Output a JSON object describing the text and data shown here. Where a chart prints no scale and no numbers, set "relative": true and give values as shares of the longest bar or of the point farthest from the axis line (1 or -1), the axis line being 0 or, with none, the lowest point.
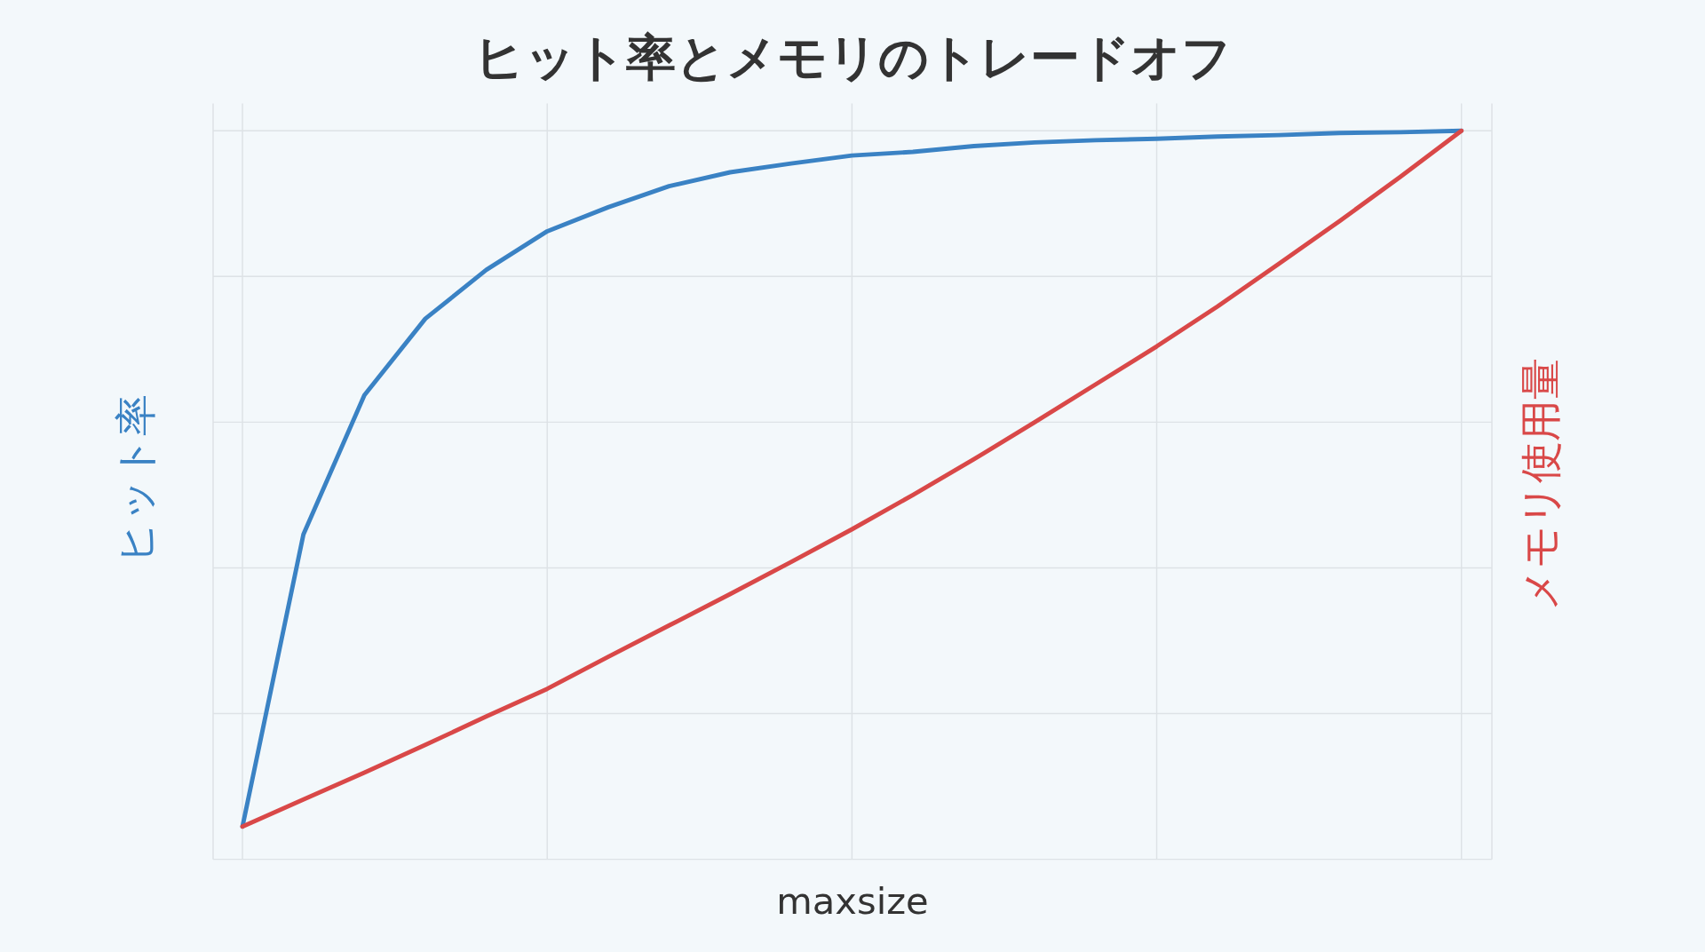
{
  "chart_data": {
    "type": "line",
    "title": "ヒット率とメモリのトレードオフ",
    "xlabel": "maxsize",
    "ylabel": "ヒット率",
    "y2label": "メモリ使用量",
    "relative": true,
    "grid": true,
    "categories": [
      null,
      null,
      null,
      null,
      null,
      null,
      null,
      null,
      null,
      null,
      null,
      null,
      null,
      null,
      null,
      null,
      null,
      null,
      null,
      null,
      null
    ],
    "series": [
      {
        "color": "#3a82c4",
        "values": [
          0.045,
          0.446,
          0.637,
          0.742,
          0.809,
          0.862,
          0.895,
          0.924,
          0.943,
          0.955,
          0.966,
          0.971,
          0.979,
          0.984,
          0.987,
          0.989,
          0.992,
          0.994,
          0.997,
          0.998,
          1
        ]
      },
      {
        "color": "#d94848",
        "values": [
          0.045,
          0.082,
          0.119,
          0.157,
          0.196,
          0.234,
          0.278,
          0.321,
          0.364,
          0.408,
          0.453,
          0.5,
          0.549,
          0.6,
          0.652,
          0.704,
          0.759,
          0.817,
          0.876,
          0.937,
          1
        ]
      }
    ]
  }
}
